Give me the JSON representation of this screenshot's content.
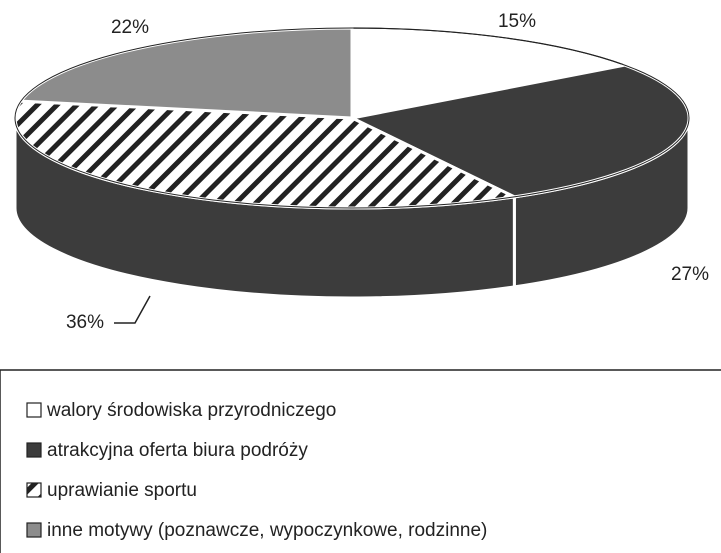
{
  "chart_data": {
    "type": "pie3d",
    "categories": [
      "walory środowiska przyrodniczego",
      "atrakcyjna oferta biura podróży",
      "uprawianie sportu",
      "inne motywy (poznawcze, wypoczynkowe, rodzinne)"
    ],
    "values": [
      15,
      27,
      36,
      22
    ],
    "value_labels": [
      "15%",
      "27%",
      "36%",
      "22%"
    ],
    "colors": [
      "#ffffff",
      "#3c3c3c",
      "#ffffff",
      "#8c8c8c"
    ],
    "hatched": [
      false,
      false,
      true,
      false
    ],
    "side_color": "#3c3c3c"
  }
}
